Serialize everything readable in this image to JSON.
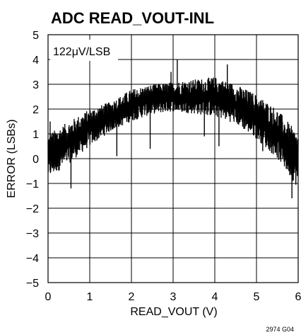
{
  "chart_data": {
    "type": "line",
    "title": "ADC READ_VOUT-INL",
    "xlabel": "READ_VOUT (V)",
    "ylabel": "ERROR (LSBs)",
    "annotation": "122μV/LSB",
    "figure_id": "2974 G04",
    "xlim": [
      0,
      6
    ],
    "ylim": [
      -5,
      5
    ],
    "x_ticks": [
      "0",
      "1",
      "2",
      "3",
      "4",
      "5",
      "6"
    ],
    "y_ticks": [
      "5",
      "4",
      "3",
      "2",
      "1",
      "0",
      "−1",
      "−2",
      "−3",
      "−4",
      "−5"
    ],
    "grid": true,
    "legend": "none",
    "series_color": "#000000",
    "series": [
      {
        "envelope": {
          "x": [
            0,
            0.5,
            1,
            1.5,
            2,
            2.5,
            3,
            3.5,
            4,
            4.5,
            5,
            5.5,
            6
          ],
          "upper": [
            1.0,
            1.5,
            2.0,
            2.3,
            2.8,
            3.0,
            3.1,
            3.2,
            3.3,
            3.0,
            2.6,
            2.0,
            1.0
          ],
          "lower": [
            -0.8,
            -0.2,
            0.5,
            1.1,
            1.5,
            1.8,
            1.9,
            1.8,
            1.7,
            1.4,
            0.8,
            0.0,
            -1.2
          ]
        },
        "spikes": [
          {
            "x": 0.05,
            "y": 1.5
          },
          {
            "x": 0.55,
            "y": -1.2
          },
          {
            "x": 1.65,
            "y": 0.1
          },
          {
            "x": 2.45,
            "y": 0.4
          },
          {
            "x": 2.95,
            "y": 3.5
          },
          {
            "x": 3.1,
            "y": 4.0
          },
          {
            "x": 3.75,
            "y": 0.9
          },
          {
            "x": 4.1,
            "y": 0.5
          },
          {
            "x": 4.3,
            "y": 3.8
          },
          {
            "x": 5.15,
            "y": 0.3
          },
          {
            "x": 5.85,
            "y": -1.6
          }
        ]
      }
    ]
  }
}
